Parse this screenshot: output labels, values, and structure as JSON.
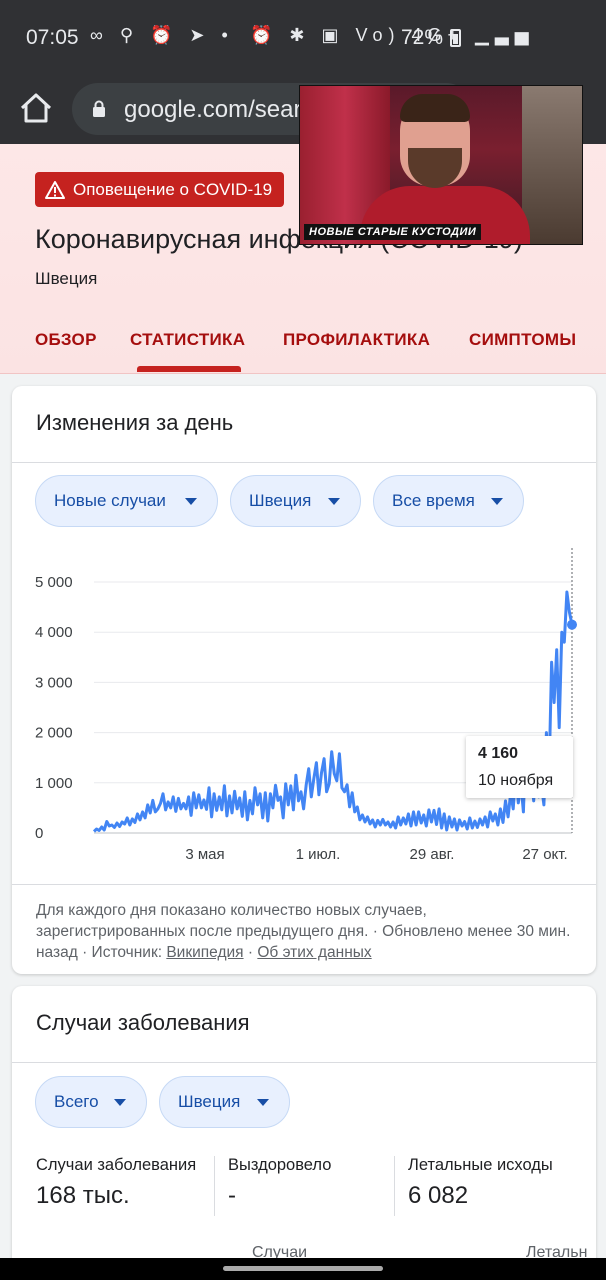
{
  "status_bar": {
    "time": "07:05",
    "left_icons": "∞ ⚲ ⏰ ➤ •",
    "right_icons": "⏰ ✱ ▣ Vo) 4G+ ▁▃▅",
    "battery": "72%"
  },
  "url_bar": {
    "url": "google.com/search"
  },
  "video_overlay": {
    "caption": "НОВЫЕ СТАРЫЕ КУСТОДИИ"
  },
  "header": {
    "alert": "Оповещение о COVID-19",
    "title": "Коронавирусная инфекция (COVID-19)",
    "country": "Швеция",
    "tabs": [
      {
        "label": "ОБЗОР"
      },
      {
        "label": "СТАТИСТИКА"
      },
      {
        "label": "ПРОФИЛАКТИКА"
      },
      {
        "label": "СИМПТОМЫ"
      }
    ]
  },
  "daily_card": {
    "title": "Изменения за день",
    "chips": [
      "Новые случаи",
      "Швеция",
      "Все время"
    ],
    "footnote_text": "Для каждого дня показано количество новых случаев, зарегистрированных после предыдущего дня. · Обновлено менее 30 мин. назад  ·  Источник: ",
    "source_link": "Википедия",
    "about_link": "Об этих данных"
  },
  "chart_data": {
    "type": "line",
    "ylim": [
      0,
      5000
    ],
    "y_ticks": [
      "5 000",
      "4 000",
      "3 000",
      "2 000",
      "1 000",
      "0"
    ],
    "x_ticks": [
      "3 мая",
      "1 июл.",
      "29 авг.",
      "27 окт."
    ],
    "color": "#4285f4",
    "tooltip": {
      "value": "4 160",
      "date": "10 ноября"
    },
    "series": [
      {
        "values": [
          30,
          80,
          50,
          120,
          60,
          230,
          140,
          160,
          110,
          200,
          130,
          220,
          180,
          300,
          160,
          280,
          210,
          380,
          260,
          420,
          300,
          560,
          400,
          650,
          420,
          480,
          590,
          780,
          460,
          620,
          500,
          720,
          430,
          690,
          480,
          590,
          480,
          720,
          350,
          800,
          500,
          760,
          500,
          660,
          470,
          900,
          320,
          780,
          450,
          720,
          460,
          940,
          340,
          740,
          400,
          830,
          480,
          700,
          330,
          820,
          260,
          650,
          380,
          900,
          560,
          780,
          300,
          800,
          240,
          780,
          500,
          950,
          650,
          720,
          300,
          980,
          560,
          940,
          460,
          1150,
          640,
          820,
          480,
          960,
          1280,
          720,
          1080,
          1400,
          760,
          1200,
          1480,
          820,
          980,
          1620,
          1180,
          1040,
          1580,
          900,
          820,
          960,
          520,
          800,
          420,
          520,
          260,
          360,
          220,
          320,
          180,
          260,
          120,
          250,
          160,
          270,
          160,
          220,
          120,
          220,
          100,
          320,
          160,
          300,
          180,
          380,
          140,
          420,
          160,
          420,
          200,
          360,
          140,
          460,
          220,
          450,
          170,
          480,
          100,
          380,
          60,
          320,
          120,
          280,
          60,
          260,
          140,
          230,
          80,
          300,
          100,
          240,
          110,
          280,
          160,
          320,
          120,
          420,
          240,
          380,
          160,
          480,
          210,
          640,
          320,
          800,
          480,
          1200,
          600,
          980,
          420,
          1900,
          780,
          1150,
          640,
          1480,
          720,
          980,
          560,
          2000,
          1100,
          3400,
          2600,
          3650,
          2100,
          4000,
          3800,
          4800,
          4400,
          4150
        ]
      }
    ]
  },
  "cases_card": {
    "title": "Случаи заболевания",
    "chips": [
      "Всего",
      "Швеция"
    ],
    "stats": [
      {
        "label": "Случаи заболевания",
        "value": "168 тыс."
      },
      {
        "label": "Выздоровело",
        "value": "-"
      },
      {
        "label": "Летальные исходы",
        "value": "6 082"
      }
    ],
    "peek_left": "Случаи",
    "peek_right": "Летальн"
  }
}
